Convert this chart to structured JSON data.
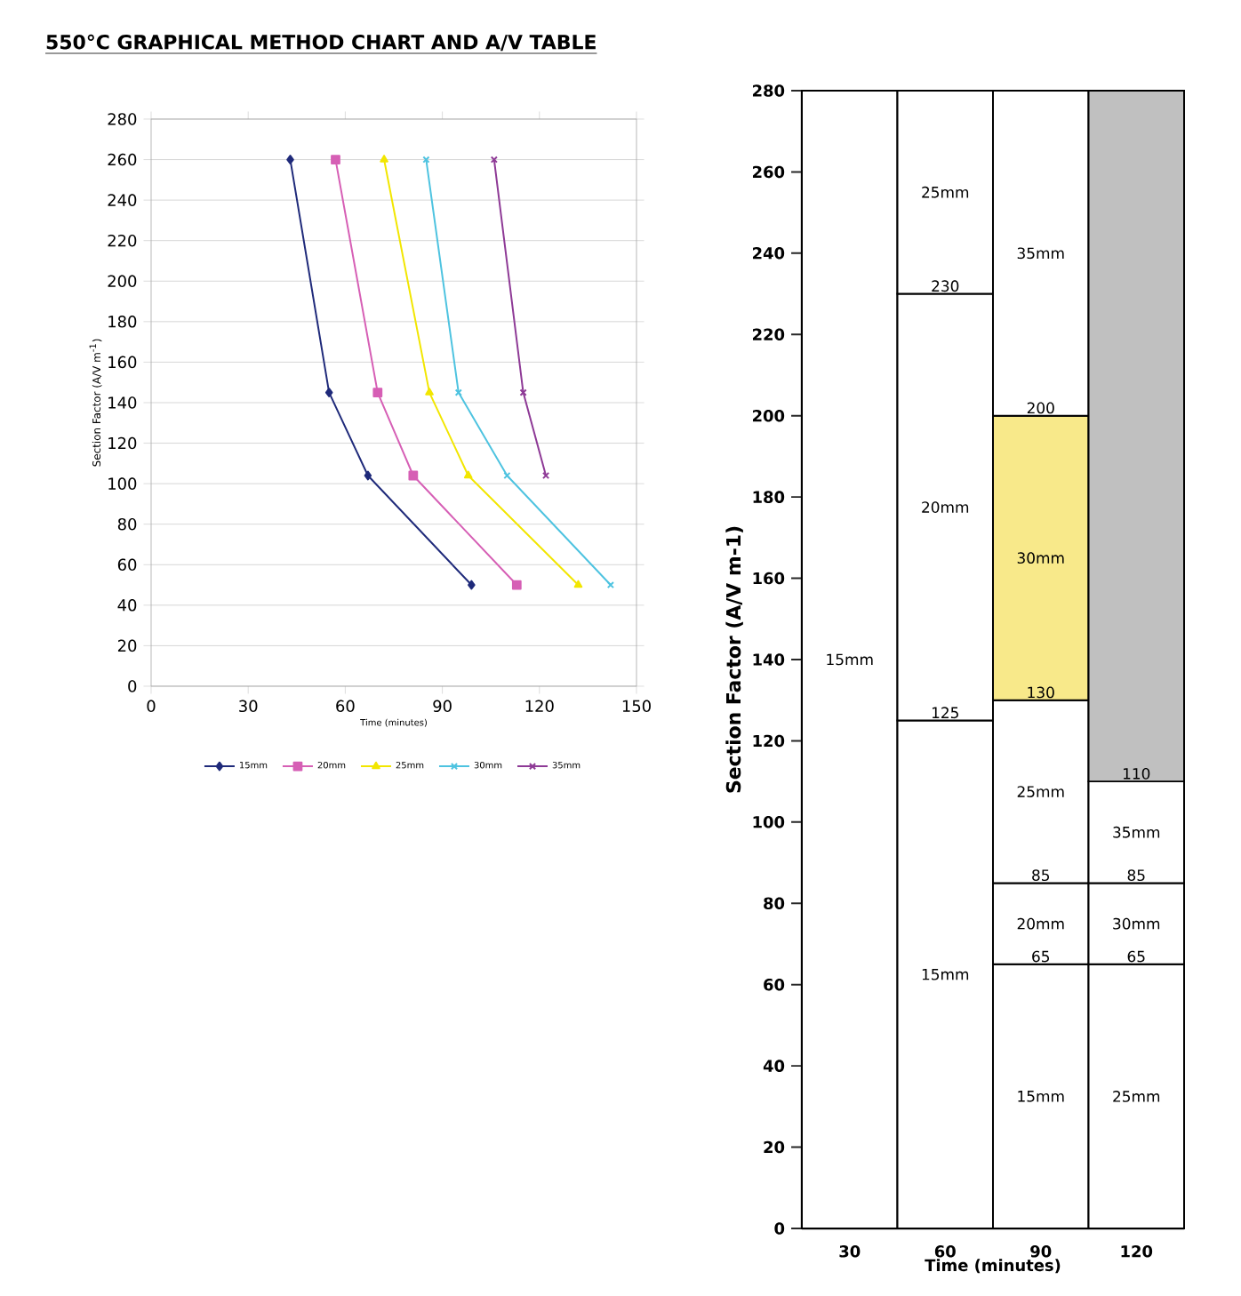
{
  "chart_data": [
    {
      "type": "line",
      "title": "550°C GRAPHICAL METHOD CHART AND A/V TABLE",
      "xlabel": "Time (minutes)",
      "ylabel": "Section Factor (A/V m$^{-1}$)",
      "xlim": [
        0,
        150
      ],
      "xticks": [
        0,
        30,
        60,
        90,
        120,
        150
      ],
      "ylim": [
        0,
        280
      ],
      "yticks": [
        0,
        20,
        40,
        60,
        80,
        100,
        120,
        140,
        160,
        180,
        200,
        220,
        240,
        260,
        280
      ],
      "grid": "y",
      "legend": "bottom",
      "series": [
        {
          "name": "15mm",
          "color": "#1f2a7a",
          "marker": "diamond",
          "x": [
            43,
            55,
            67,
            99
          ],
          "values": [
            260,
            145,
            104,
            50
          ]
        },
        {
          "name": "20mm",
          "color": "#d65fb5",
          "marker": "square",
          "x": [
            57,
            70,
            81,
            113
          ],
          "values": [
            260,
            145,
            104,
            50
          ]
        },
        {
          "name": "25mm",
          "color": "#f2e600",
          "marker": "triangle",
          "x": [
            72,
            86,
            98,
            132
          ],
          "values": [
            260,
            145,
            104,
            50
          ]
        },
        {
          "name": "30mm",
          "color": "#4ec3e0",
          "marker": "cross",
          "x": [
            85,
            95,
            110,
            142
          ],
          "values": [
            260,
            145,
            104,
            50
          ]
        },
        {
          "name": "35mm",
          "color": "#8e3a96",
          "marker": "cross",
          "x": [
            106,
            115,
            122
          ],
          "values": [
            260,
            145,
            104
          ]
        }
      ]
    },
    {
      "type": "bar",
      "stacked": true,
      "xlabel": "Time (minutes)",
      "ylabel": "Section Factor (A/V m-1)",
      "categories": [
        "30",
        "60",
        "90",
        "120"
      ],
      "ylim": [
        0,
        280
      ],
      "yticks": [
        0,
        20,
        40,
        60,
        80,
        100,
        120,
        140,
        160,
        180,
        200,
        220,
        240,
        260,
        280
      ],
      "series": [
        {
          "name": "15mm",
          "colors": [
            "#ffffff",
            "#ffffff",
            "#ffffff",
            "#ffffff"
          ],
          "values": [
            280,
            125,
            65,
            null
          ]
        },
        {
          "name": "20mm",
          "colors": [
            "#ffffff",
            "#ffffff",
            "#ffffff",
            "#ffffff"
          ],
          "values": [
            null,
            105,
            20,
            null
          ]
        },
        {
          "name": "25mm",
          "colors": [
            "#ffffff",
            "#ffffff",
            "#ffffff",
            "#ffffff"
          ],
          "values": [
            null,
            50,
            45,
            65
          ]
        },
        {
          "name": "30mm",
          "colors": [
            "#ffffff",
            "#ffffff",
            "#f8e98a",
            "#ffffff"
          ],
          "values": [
            null,
            null,
            70,
            20
          ]
        },
        {
          "name": "35mm",
          "colors": [
            "#ffffff",
            "#ffffff",
            "#ffffff",
            "#ffffff"
          ],
          "values": [
            null,
            null,
            80,
            25
          ]
        },
        {
          "colors": [
            "#c0c0c0",
            "#c0c0c0",
            "#c0c0c0",
            "#c0c0c0"
          ],
          "values": [
            null,
            null,
            null,
            170
          ]
        }
      ],
      "annotations": [
        {
          "text": "125",
          "x": "60",
          "y": 125
        },
        {
          "text": "230",
          "x": "60",
          "y": 230
        },
        {
          "text": "65",
          "x": "90",
          "y": 65
        },
        {
          "text": "85",
          "x": "90",
          "y": 85
        },
        {
          "text": "130",
          "x": "90",
          "y": 130
        },
        {
          "text": "200",
          "x": "90",
          "y": 200
        },
        {
          "text": "65",
          "x": "120",
          "y": 65
        },
        {
          "text": "85",
          "x": "120",
          "y": 85
        },
        {
          "text": "110",
          "x": "120",
          "y": 110
        }
      ]
    }
  ]
}
